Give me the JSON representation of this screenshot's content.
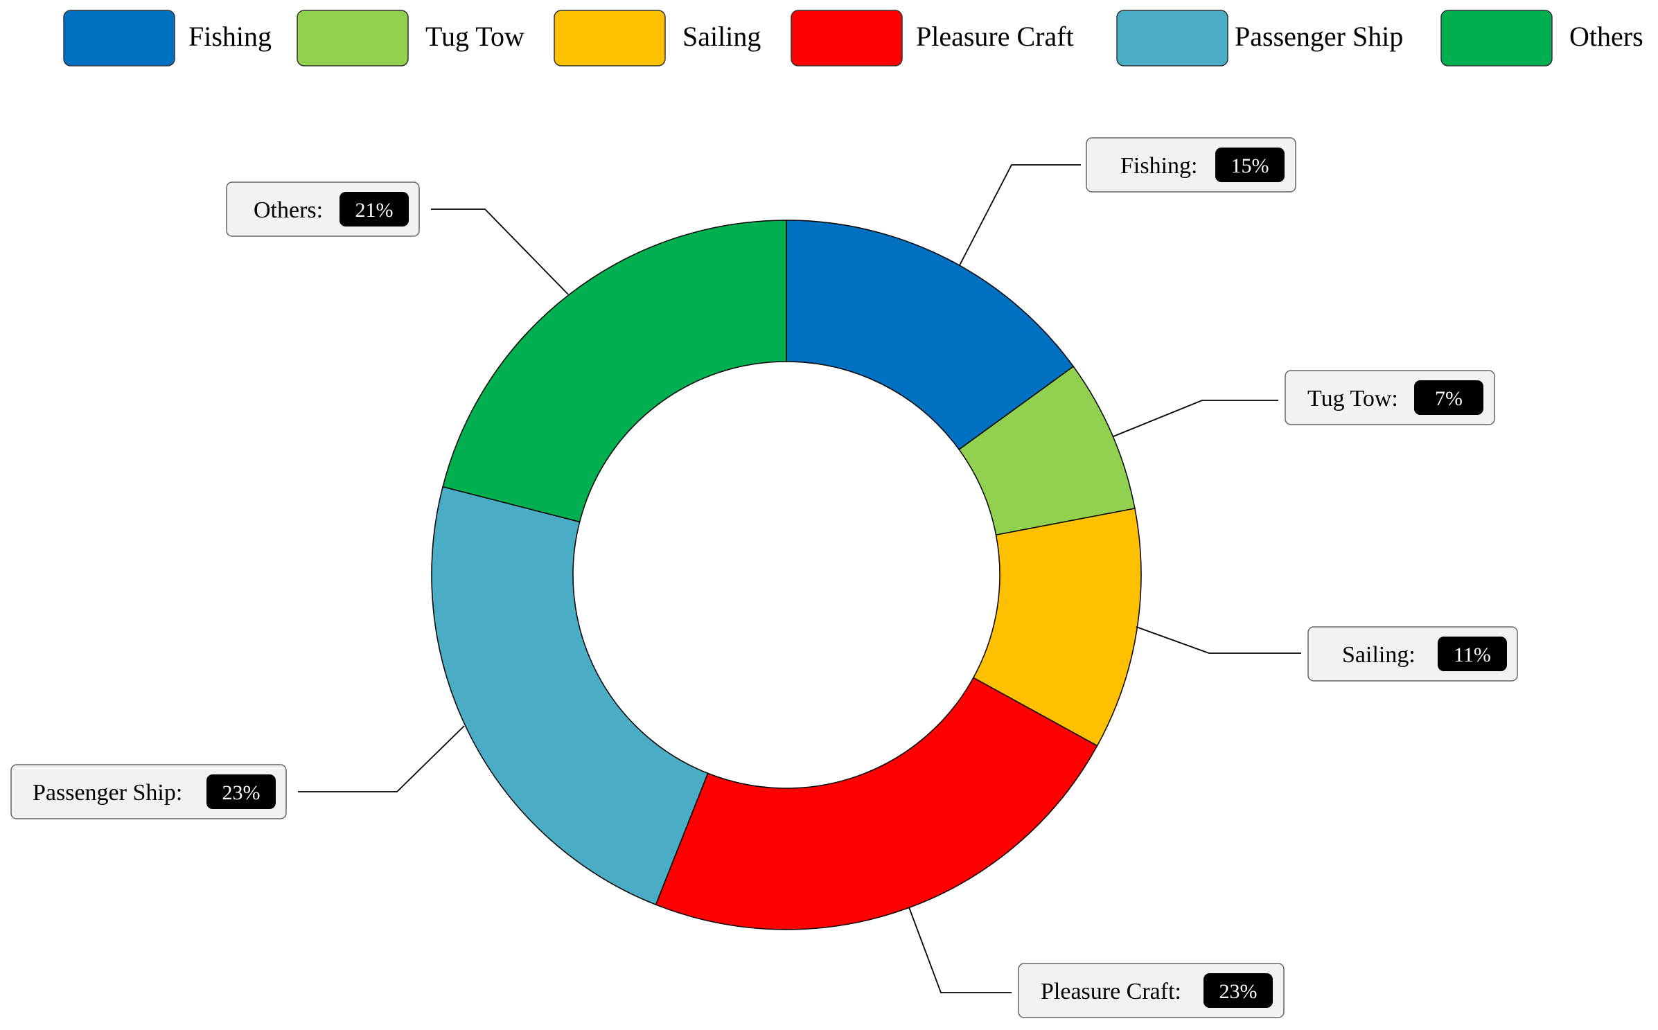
{
  "chart_data": {
    "type": "pie",
    "variant": "donut",
    "categories": [
      "Fishing",
      "Tug Tow",
      "Sailing",
      "Pleasure Craft",
      "Passenger Ship",
      "Others"
    ],
    "values": [
      15,
      7,
      11,
      23,
      23,
      21
    ],
    "value_labels": [
      "15%",
      "7%",
      "11%",
      "23%",
      "23%",
      "21%"
    ],
    "colors": [
      "#0070C0",
      "#92D050",
      "#FFC000",
      "#FF0000",
      "#4BACC6",
      "#00B050"
    ],
    "callout_labels": [
      "Fishing:",
      "Tug Tow:",
      "Sailing:",
      "Pleasure Craft:",
      "Passenger Ship:",
      "Others:"
    ],
    "legend": {
      "placement": "top",
      "entries": [
        "Fishing",
        "Tug Tow",
        "Sailing",
        "Pleasure Craft",
        "Passenger Ship",
        "Others"
      ]
    },
    "title": "",
    "start_angle": "12 o'clock",
    "direction": "clockwise"
  }
}
